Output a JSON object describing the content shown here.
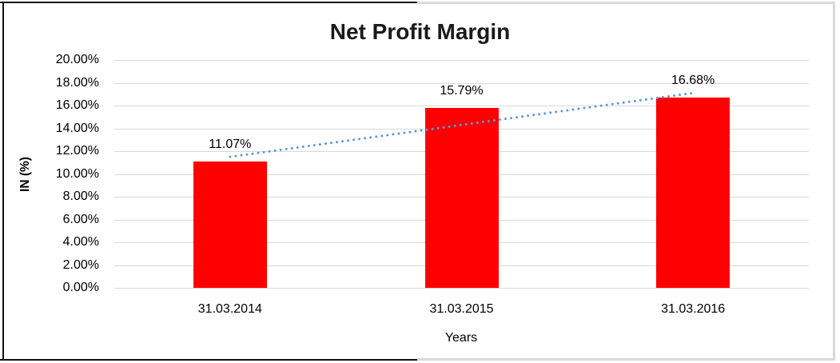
{
  "chart_data": {
    "type": "bar",
    "title": "Net Profit Margin",
    "categories": [
      "31.03.2014",
      "31.03.2015",
      "31.03.2016"
    ],
    "values": [
      11.07,
      15.79,
      16.68
    ],
    "data_labels": [
      "11.07%",
      "15.79%",
      "16.68%"
    ],
    "xlabel": "Years",
    "ylabel": "IN (%)",
    "ylim": [
      0,
      20
    ],
    "y_tick_step": 2,
    "y_tick_labels": [
      "0.00%",
      "2.00%",
      "4.00%",
      "6.00%",
      "8.00%",
      "10.00%",
      "12.00%",
      "14.00%",
      "16.00%",
      "18.00%",
      "20.00%"
    ],
    "grid": true,
    "legend": "none",
    "colors": {
      "bar": "#FF0000",
      "trendline": "#5B9BD5",
      "gridline": "#D9D9D9",
      "text": "#000000",
      "title_text": "#1A1A1A"
    },
    "trendline": {
      "type": "linear",
      "style": "dotted",
      "start_value": 11.5,
      "end_value": 17.1
    }
  }
}
